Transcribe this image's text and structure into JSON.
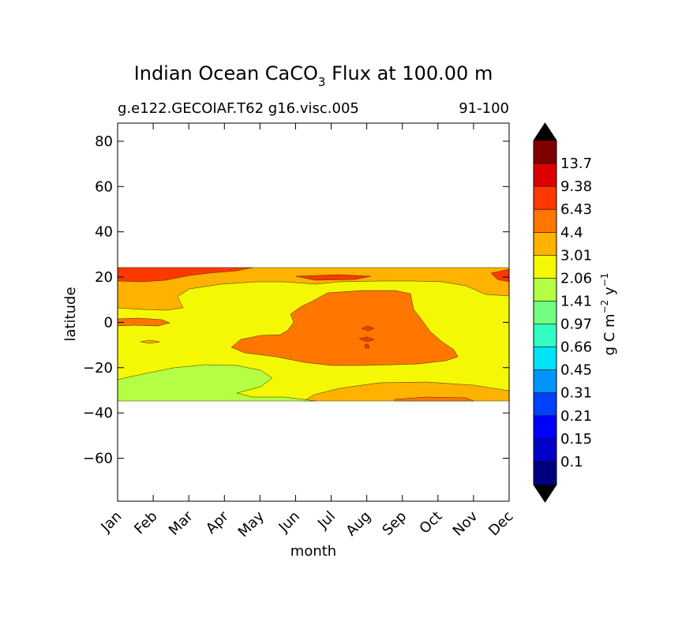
{
  "chart_data": {
    "type": "heatmap",
    "title": "Indian Ocean CaCO",
    "title_subscript": "3",
    "title_rest": " Flux at 100.00 m",
    "subtitle_left": "g.e122.GECOIAF.T62 g16.visc.005",
    "subtitle_right": "91-100",
    "xlabel": "month",
    "ylabel": "latitude",
    "x_ticks": [
      "Jan",
      "Feb",
      "Mar",
      "Apr",
      "May",
      "Jun",
      "Jul",
      "Aug",
      "Sep",
      "Oct",
      "Nov",
      "Dec"
    ],
    "y_ticks": [
      "80",
      "60",
      "40",
      "20",
      "0",
      "−20",
      "−40",
      "−60"
    ],
    "y_tick_values": [
      80,
      60,
      40,
      20,
      0,
      -20,
      -40,
      -60
    ],
    "ylim": [
      -79,
      88
    ],
    "data_lat_range": [
      -34,
      25
    ],
    "colorbar": {
      "label": "g C m",
      "label_sup1": "−2",
      "label_mid": " y",
      "label_sup2": "−1",
      "tick_labels": [
        "0.1",
        "0.15",
        "0.21",
        "0.31",
        "0.45",
        "0.66",
        "0.97",
        "1.41",
        "2.06",
        "3.01",
        "4.4",
        "6.43",
        "9.38",
        "13.7"
      ],
      "colors": [
        "#00007f",
        "#0000c8",
        "#0000ff",
        "#0040ff",
        "#0094ff",
        "#00e4f7",
        "#33ffc4",
        "#73ff83",
        "#b4ff43",
        "#f4f804",
        "#ffb200",
        "#ff7600",
        "#ff3800",
        "#dd0000",
        "#7f0000"
      ],
      "under_color": "#000000",
      "over_color": "#000000"
    },
    "regions": [
      {
        "name": "mid-latitude band 3.01-4.4",
        "color": "#ffb200"
      },
      {
        "name": "broad band 2.06-3.01",
        "color": "#f4f804"
      },
      {
        "name": "southern patch 1.41-2.06 (Jan-Apr)",
        "color": "#b4ff43"
      },
      {
        "name": "equatorial maximum 4.4-6.43 (Jun-Sep)",
        "color": "#ff7600"
      },
      {
        "name": "northern edge 6.43-9.38 (Jan-Mar)",
        "color": "#ff3800"
      }
    ]
  }
}
